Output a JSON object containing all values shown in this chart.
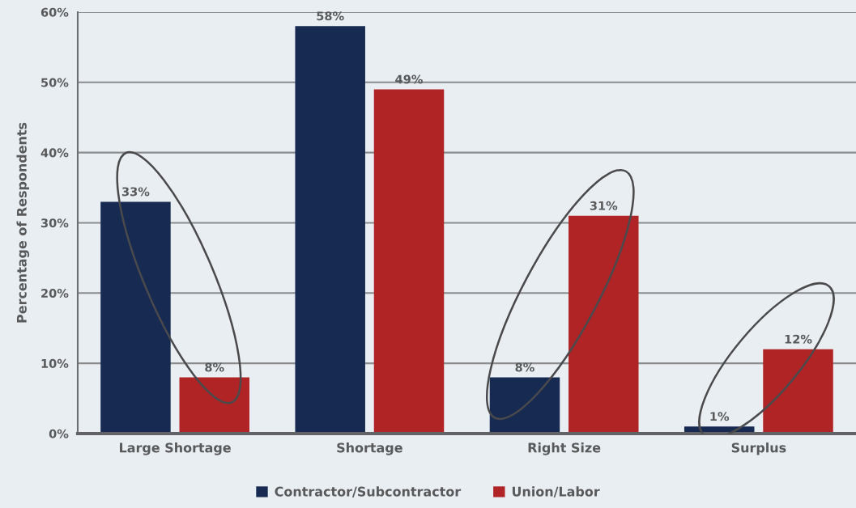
{
  "chart_data": {
    "type": "bar",
    "ylabel": "Percentage of Respondents",
    "categories": [
      "Large Shortage",
      "Shortage",
      "Right Size",
      "Surplus"
    ],
    "series": [
      {
        "name": "Contractor/Subcontractor",
        "color": "#172a52",
        "values": [
          33,
          58,
          8,
          1
        ],
        "value_labels": [
          "33%",
          "58%",
          "8%",
          "1%"
        ]
      },
      {
        "name": "Union/Labor",
        "color": "#b02426",
        "values": [
          8,
          49,
          31,
          12
        ],
        "value_labels": [
          "8%",
          "49%",
          "31%",
          "12%"
        ]
      }
    ],
    "ylim": [
      0,
      60
    ],
    "yticks": [
      {
        "value": 0,
        "label": "0%"
      },
      {
        "value": 10,
        "label": "10%"
      },
      {
        "value": 20,
        "label": "20%"
      },
      {
        "value": 30,
        "label": "30%"
      },
      {
        "value": 40,
        "label": "40%"
      },
      {
        "value": 50,
        "label": "50%"
      },
      {
        "value": 60,
        "label": "60%"
      }
    ],
    "grid": "y",
    "legend": "bottom"
  }
}
